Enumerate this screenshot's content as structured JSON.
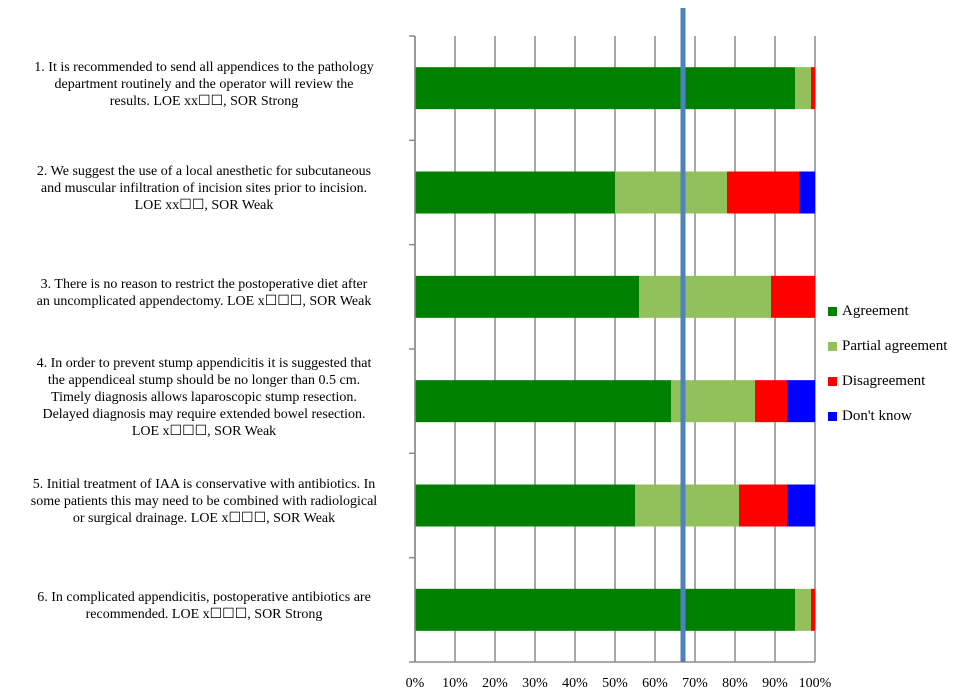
{
  "chart_data": {
    "type": "bar",
    "orientation": "horizontal",
    "stacked": true,
    "categories": [
      [
        "1. It is recommended to send all appendices to the pathology",
        "department routinely and the operator will review the",
        "results. LOE xx☐☐, SOR Strong"
      ],
      [
        "2.  We suggest the use of a local anesthetic for subcutaneous",
        "and muscular infiltration of incision sites prior to incision.",
        "LOE xx☐☐, SOR Weak"
      ],
      [
        "3. There is no reason to restrict the postoperative diet after",
        "an uncomplicated appendectomy. LOE x☐☐☐, SOR Weak"
      ],
      [
        "4. In order to prevent stump appendicitis it is suggested that",
        "the appendiceal stump should be no longer than 0.5 cm.",
        "Timely diagnosis allows laparoscopic stump resection.",
        "Delayed diagnosis may require extended bowel resection.",
        "LOE x☐☐☐, SOR Weak"
      ],
      [
        "5. Initial treatment of IAA is conservative with antibiotics. In",
        "some patients this may need to be combined with radiological",
        "or surgical drainage. LOE x☐☐☐, SOR Weak"
      ],
      [
        "6. In complicated appendicitis, postoperative antibiotics are",
        "recommended. LOE x☐☐☐, SOR Strong"
      ]
    ],
    "series": [
      {
        "name": "Agreement",
        "color": "#008000",
        "values": [
          95,
          50,
          56,
          64,
          55,
          95
        ]
      },
      {
        "name": "Partial agreement",
        "color": "#92c05a",
        "values": [
          4,
          28,
          33,
          21,
          26,
          4
        ]
      },
      {
        "name": "Disagreement",
        "color": "#ff0000",
        "values": [
          1,
          18,
          11,
          8,
          12,
          1
        ]
      },
      {
        "name": "Don't know",
        "color": "#0000ff",
        "values": [
          0,
          4,
          0,
          7,
          7,
          0
        ]
      }
    ],
    "xlim": [
      0,
      100
    ],
    "xticks": [
      "0%",
      "10%",
      "20%",
      "30%",
      "40%",
      "50%",
      "60%",
      "70%",
      "80%",
      "90%",
      "100%"
    ],
    "reference_line": {
      "value": 67,
      "color": "#4f81bd"
    },
    "grid": true,
    "legend_position": "right"
  }
}
